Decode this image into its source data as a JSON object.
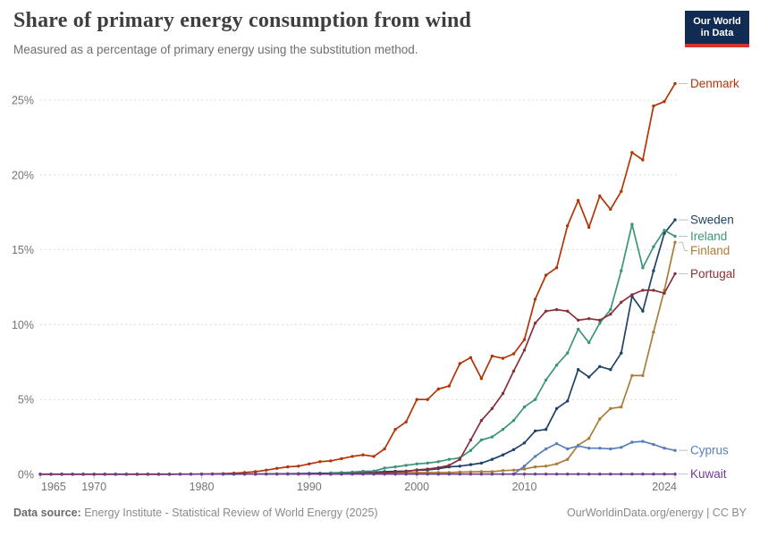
{
  "header": {
    "title": "Share of primary energy consumption from wind",
    "subtitle": "Measured as a percentage of primary energy using the substitution method."
  },
  "logo": {
    "line1": "Our World",
    "line2": "in Data",
    "bg_color": "#122B52",
    "accent_color": "#D0342C"
  },
  "footer": {
    "source_label": "Data source:",
    "source_text": " Energy Institute - Statistical Review of World Energy (2025)",
    "right_text": "OurWorldinData.org/energy | CC BY"
  },
  "chart_data": {
    "type": "line",
    "title": "Share of primary energy consumption from wind",
    "xlabel": "",
    "ylabel": "",
    "x_axis": {
      "range": [
        1965,
        2024
      ],
      "ticks": [
        1965,
        1970,
        1980,
        1990,
        2000,
        2010,
        2024
      ]
    },
    "y_axis": {
      "range": [
        0,
        26.5
      ],
      "ticks": [
        0,
        5,
        10,
        15,
        20,
        25
      ],
      "unit": "%",
      "gridlines": "dashed"
    },
    "legend_position": "right-edge-labels",
    "grid_color": "#dcdcdc",
    "axis_text_color": "#737373",
    "series": [
      {
        "name": "Denmark",
        "color": "#B13507",
        "points": [
          [
            1965,
            0
          ],
          [
            1966,
            0
          ],
          [
            1967,
            0
          ],
          [
            1968,
            0
          ],
          [
            1969,
            0
          ],
          [
            1970,
            0
          ],
          [
            1971,
            0
          ],
          [
            1972,
            0
          ],
          [
            1973,
            0
          ],
          [
            1974,
            0
          ],
          [
            1975,
            0
          ],
          [
            1976,
            0
          ],
          [
            1977,
            0
          ],
          [
            1978,
            0.01
          ],
          [
            1979,
            0.01
          ],
          [
            1980,
            0.02
          ],
          [
            1981,
            0.03
          ],
          [
            1982,
            0.05
          ],
          [
            1983,
            0.08
          ],
          [
            1984,
            0.12
          ],
          [
            1985,
            0.18
          ],
          [
            1986,
            0.28
          ],
          [
            1987,
            0.4
          ],
          [
            1988,
            0.5
          ],
          [
            1989,
            0.55
          ],
          [
            1990,
            0.7
          ],
          [
            1991,
            0.85
          ],
          [
            1992,
            0.9
          ],
          [
            1993,
            1.05
          ],
          [
            1994,
            1.2
          ],
          [
            1995,
            1.3
          ],
          [
            1996,
            1.2
          ],
          [
            1997,
            1.7
          ],
          [
            1998,
            3.0
          ],
          [
            1999,
            3.5
          ],
          [
            2000,
            5.0
          ],
          [
            2001,
            5.0
          ],
          [
            2002,
            5.7
          ],
          [
            2003,
            5.9
          ],
          [
            2004,
            7.4
          ],
          [
            2005,
            7.8
          ],
          [
            2006,
            6.4
          ],
          [
            2007,
            7.9
          ],
          [
            2008,
            7.75
          ],
          [
            2009,
            8.05
          ],
          [
            2010,
            9.0
          ],
          [
            2011,
            11.7
          ],
          [
            2012,
            13.3
          ],
          [
            2013,
            13.8
          ],
          [
            2014,
            16.6
          ],
          [
            2015,
            18.3
          ],
          [
            2016,
            16.5
          ],
          [
            2017,
            18.6
          ],
          [
            2018,
            17.7
          ],
          [
            2019,
            18.9
          ],
          [
            2020,
            21.5
          ],
          [
            2021,
            21.0
          ],
          [
            2022,
            24.6
          ],
          [
            2023,
            24.9
          ],
          [
            2024,
            26.1
          ]
        ]
      },
      {
        "name": "Sweden",
        "color": "#1F4266",
        "points": [
          [
            1982,
            0.01
          ],
          [
            1983,
            0.01
          ],
          [
            1984,
            0.02
          ],
          [
            1985,
            0.02
          ],
          [
            1986,
            0.03
          ],
          [
            1987,
            0.03
          ],
          [
            1988,
            0.04
          ],
          [
            1989,
            0.05
          ],
          [
            1990,
            0.06
          ],
          [
            1991,
            0.07
          ],
          [
            1992,
            0.08
          ],
          [
            1993,
            0.1
          ],
          [
            1994,
            0.12
          ],
          [
            1995,
            0.15
          ],
          [
            1996,
            0.15
          ],
          [
            1997,
            0.18
          ],
          [
            1998,
            0.2
          ],
          [
            1999,
            0.22
          ],
          [
            2000,
            0.28
          ],
          [
            2001,
            0.3
          ],
          [
            2002,
            0.38
          ],
          [
            2003,
            0.5
          ],
          [
            2004,
            0.55
          ],
          [
            2005,
            0.65
          ],
          [
            2006,
            0.75
          ],
          [
            2007,
            1.0
          ],
          [
            2008,
            1.3
          ],
          [
            2009,
            1.65
          ],
          [
            2010,
            2.1
          ],
          [
            2011,
            2.9
          ],
          [
            2012,
            3.0
          ],
          [
            2013,
            4.4
          ],
          [
            2014,
            4.9
          ],
          [
            2015,
            7.0
          ],
          [
            2016,
            6.5
          ],
          [
            2017,
            7.2
          ],
          [
            2018,
            7.0
          ],
          [
            2019,
            8.1
          ],
          [
            2020,
            11.9
          ],
          [
            2021,
            10.9
          ],
          [
            2022,
            13.6
          ],
          [
            2023,
            16.1
          ],
          [
            2024,
            17.0
          ]
        ]
      },
      {
        "name": "Ireland",
        "color": "#3A9679",
        "points": [
          [
            1992,
            0.1
          ],
          [
            1993,
            0.12
          ],
          [
            1994,
            0.15
          ],
          [
            1995,
            0.2
          ],
          [
            1996,
            0.22
          ],
          [
            1997,
            0.42
          ],
          [
            1998,
            0.5
          ],
          [
            1999,
            0.6
          ],
          [
            2000,
            0.7
          ],
          [
            2001,
            0.75
          ],
          [
            2002,
            0.85
          ],
          [
            2003,
            1.0
          ],
          [
            2004,
            1.1
          ],
          [
            2005,
            1.6
          ],
          [
            2006,
            2.3
          ],
          [
            2007,
            2.5
          ],
          [
            2008,
            3.0
          ],
          [
            2009,
            3.6
          ],
          [
            2010,
            4.5
          ],
          [
            2011,
            5.0
          ],
          [
            2012,
            6.3
          ],
          [
            2013,
            7.3
          ],
          [
            2014,
            8.1
          ],
          [
            2015,
            9.7
          ],
          [
            2016,
            8.8
          ],
          [
            2017,
            10.1
          ],
          [
            2018,
            11.0
          ],
          [
            2019,
            13.6
          ],
          [
            2020,
            16.7
          ],
          [
            2021,
            13.8
          ],
          [
            2022,
            15.2
          ],
          [
            2023,
            16.3
          ],
          [
            2024,
            15.9
          ]
        ]
      },
      {
        "name": "Finland",
        "color": "#AB7C37",
        "points": [
          [
            1992,
            0.02
          ],
          [
            1993,
            0.03
          ],
          [
            1994,
            0.04
          ],
          [
            1995,
            0.06
          ],
          [
            1996,
            0.08
          ],
          [
            1997,
            0.1
          ],
          [
            1998,
            0.12
          ],
          [
            1999,
            0.12
          ],
          [
            2000,
            0.12
          ],
          [
            2001,
            0.12
          ],
          [
            2002,
            0.12
          ],
          [
            2003,
            0.12
          ],
          [
            2004,
            0.15
          ],
          [
            2005,
            0.17
          ],
          [
            2006,
            0.18
          ],
          [
            2007,
            0.18
          ],
          [
            2008,
            0.25
          ],
          [
            2009,
            0.28
          ],
          [
            2010,
            0.35
          ],
          [
            2011,
            0.5
          ],
          [
            2012,
            0.55
          ],
          [
            2013,
            0.7
          ],
          [
            2014,
            1.0
          ],
          [
            2015,
            1.95
          ],
          [
            2016,
            2.4
          ],
          [
            2017,
            3.7
          ],
          [
            2018,
            4.4
          ],
          [
            2019,
            4.5
          ],
          [
            2020,
            6.6
          ],
          [
            2021,
            6.6
          ],
          [
            2022,
            9.5
          ],
          [
            2023,
            12.3
          ],
          [
            2024,
            15.5
          ]
        ]
      },
      {
        "name": "Portugal",
        "color": "#883039",
        "points": [
          [
            1992,
            0.02
          ],
          [
            1993,
            0.03
          ],
          [
            1994,
            0.05
          ],
          [
            1995,
            0.05
          ],
          [
            1996,
            0.06
          ],
          [
            1997,
            0.1
          ],
          [
            1998,
            0.15
          ],
          [
            1999,
            0.2
          ],
          [
            2000,
            0.3
          ],
          [
            2001,
            0.35
          ],
          [
            2002,
            0.45
          ],
          [
            2003,
            0.6
          ],
          [
            2004,
            1.0
          ],
          [
            2005,
            2.3
          ],
          [
            2006,
            3.6
          ],
          [
            2007,
            4.4
          ],
          [
            2008,
            5.4
          ],
          [
            2009,
            6.9
          ],
          [
            2010,
            8.3
          ],
          [
            2011,
            10.1
          ],
          [
            2012,
            10.9
          ],
          [
            2013,
            11.0
          ],
          [
            2014,
            10.9
          ],
          [
            2015,
            10.3
          ],
          [
            2016,
            10.4
          ],
          [
            2017,
            10.3
          ],
          [
            2018,
            10.7
          ],
          [
            2019,
            11.5
          ],
          [
            2020,
            12.0
          ],
          [
            2021,
            12.3
          ],
          [
            2022,
            12.3
          ],
          [
            2023,
            12.1
          ],
          [
            2024,
            13.4
          ]
        ]
      },
      {
        "name": "Cyprus",
        "color": "#5B7EB7",
        "points": [
          [
            2009,
            0.02
          ],
          [
            2010,
            0.55
          ],
          [
            2011,
            1.2
          ],
          [
            2012,
            1.7
          ],
          [
            2013,
            2.05
          ],
          [
            2014,
            1.7
          ],
          [
            2015,
            1.9
          ],
          [
            2016,
            1.75
          ],
          [
            2017,
            1.75
          ],
          [
            2018,
            1.7
          ],
          [
            2019,
            1.8
          ],
          [
            2020,
            2.15
          ],
          [
            2021,
            2.2
          ],
          [
            2022,
            2.0
          ],
          [
            2023,
            1.75
          ],
          [
            2024,
            1.6
          ]
        ]
      },
      {
        "name": "Kuwait",
        "color": "#6D3E91",
        "points": [
          [
            1965,
            0.02
          ],
          [
            1966,
            0.02
          ],
          [
            1967,
            0.02
          ],
          [
            1968,
            0.02
          ],
          [
            1969,
            0.02
          ],
          [
            1970,
            0.02
          ],
          [
            1971,
            0.02
          ],
          [
            1972,
            0.02
          ],
          [
            1973,
            0.02
          ],
          [
            1974,
            0.02
          ],
          [
            1975,
            0.02
          ],
          [
            1976,
            0.02
          ],
          [
            1977,
            0.02
          ],
          [
            1978,
            0.02
          ],
          [
            1979,
            0.02
          ],
          [
            1980,
            0.02
          ],
          [
            1981,
            0.02
          ],
          [
            1982,
            0.02
          ],
          [
            1983,
            0.02
          ],
          [
            1984,
            0.02
          ],
          [
            1985,
            0.02
          ],
          [
            1986,
            0.02
          ],
          [
            1987,
            0.02
          ],
          [
            1988,
            0.02
          ],
          [
            1989,
            0.02
          ],
          [
            1990,
            0.02
          ],
          [
            1991,
            0.02
          ],
          [
            1992,
            0.02
          ],
          [
            1993,
            0.02
          ],
          [
            1994,
            0.02
          ],
          [
            1995,
            0.02
          ],
          [
            1996,
            0.02
          ],
          [
            1997,
            0.02
          ],
          [
            1998,
            0.02
          ],
          [
            1999,
            0.02
          ],
          [
            2000,
            0.02
          ],
          [
            2001,
            0.02
          ],
          [
            2002,
            0.02
          ],
          [
            2003,
            0.02
          ],
          [
            2004,
            0.02
          ],
          [
            2005,
            0.02
          ],
          [
            2006,
            0.02
          ],
          [
            2007,
            0.02
          ],
          [
            2008,
            0.02
          ],
          [
            2009,
            0.02
          ],
          [
            2010,
            0.02
          ],
          [
            2011,
            0.02
          ],
          [
            2012,
            0.02
          ],
          [
            2013,
            0.02
          ],
          [
            2014,
            0.02
          ],
          [
            2015,
            0.02
          ],
          [
            2016,
            0.02
          ],
          [
            2017,
            0.02
          ],
          [
            2018,
            0.02
          ],
          [
            2019,
            0.02
          ],
          [
            2020,
            0.02
          ],
          [
            2021,
            0.02
          ],
          [
            2022,
            0.02
          ],
          [
            2023,
            0.02
          ],
          [
            2024,
            0.02
          ]
        ]
      }
    ]
  }
}
